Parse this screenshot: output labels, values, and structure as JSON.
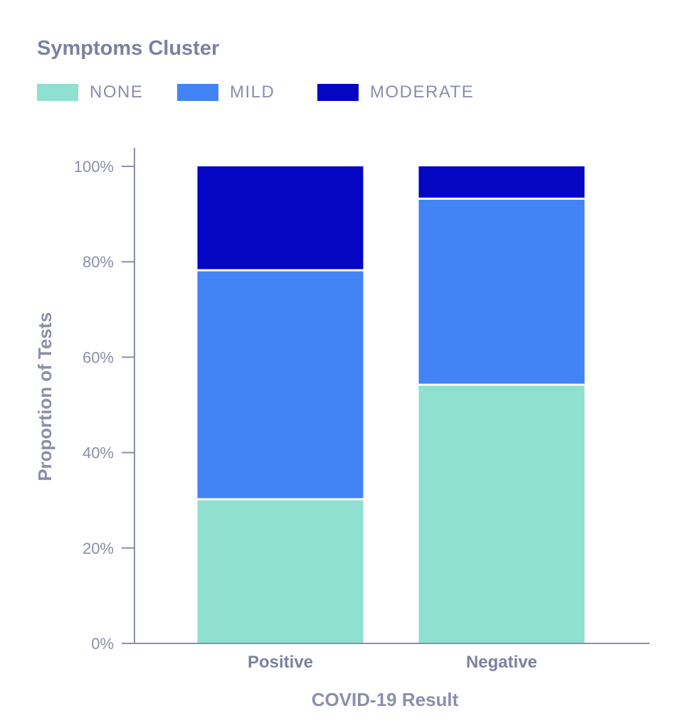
{
  "chart_data": {
    "type": "bar",
    "stacked": true,
    "title": "Symptoms Cluster",
    "xlabel": "COVID-19 Result",
    "ylabel": "Proportion of Tests",
    "categories": [
      "Positive",
      "Negative"
    ],
    "series": [
      {
        "name": "NONE",
        "color": "#8fe0ce",
        "values": [
          30,
          54
        ]
      },
      {
        "name": "MILD",
        "color": "#4283f5",
        "values": [
          48,
          39
        ]
      },
      {
        "name": "MODERATE",
        "color": "#0505c4",
        "values": [
          22,
          7
        ]
      }
    ],
    "ylim": [
      0,
      100
    ],
    "yticks": [
      "0%",
      "20%",
      "40%",
      "60%",
      "80%",
      "100%"
    ],
    "ytick_values": [
      0,
      20,
      40,
      60,
      80,
      100
    ],
    "legend_position": "top-left",
    "grid": false
  }
}
